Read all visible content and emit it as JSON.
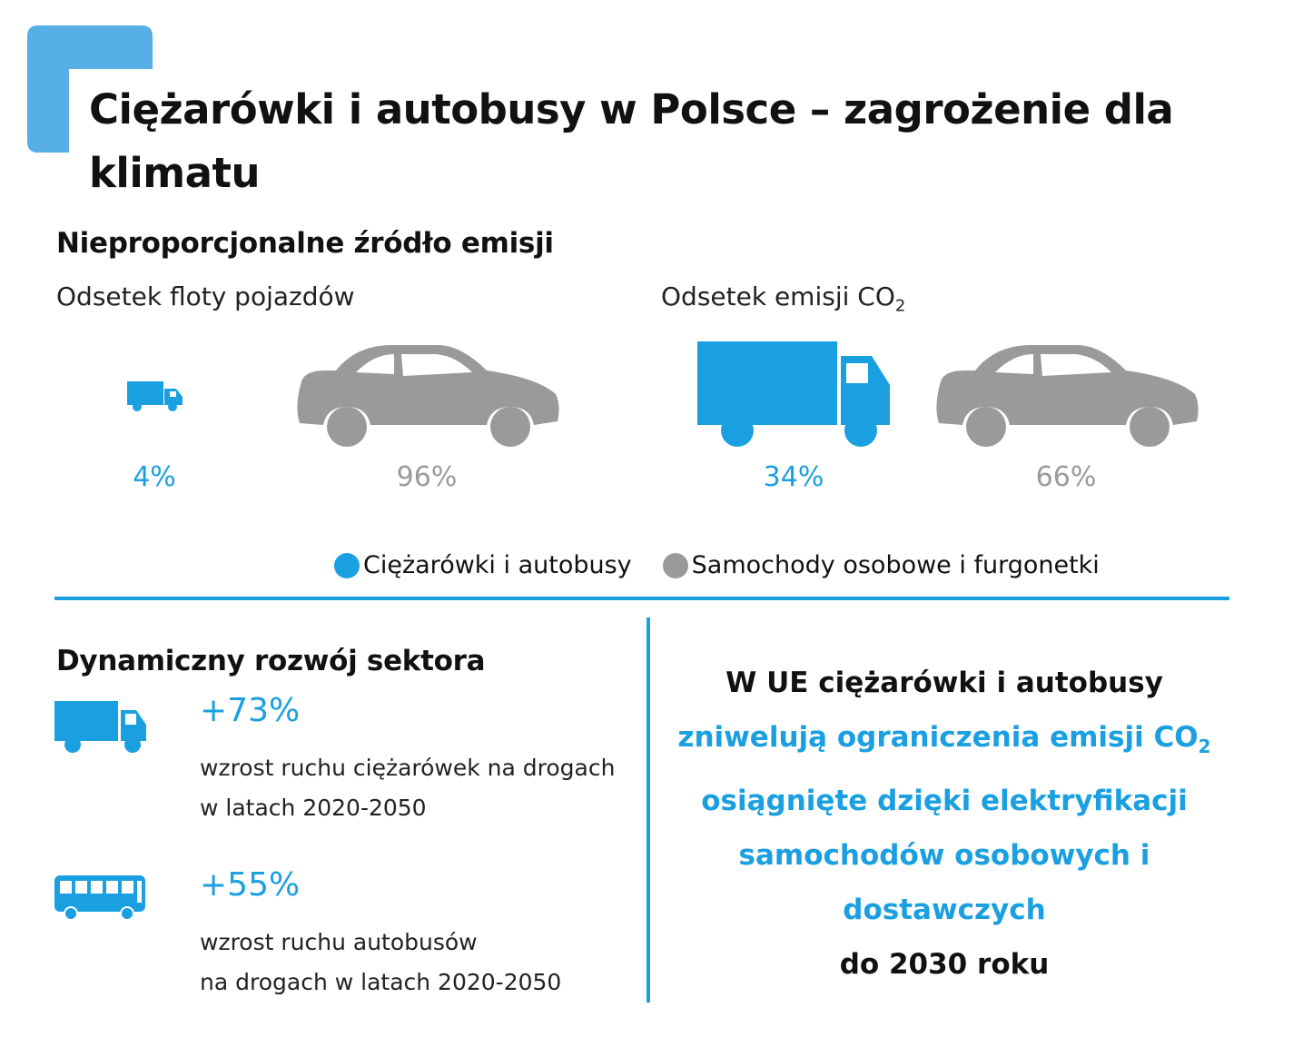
{
  "title": "Ciężarówki i autobusy w Polsce – zagrożenie dla klimatu",
  "section1": {
    "heading": "Nieproporcjonalne źródło emisji",
    "fleet_label": "Odsetek floty pojazdów",
    "emission_label_main": "Odsetek emisji CO",
    "emission_label_sub": "2",
    "fleet_trucks_pct": "4%",
    "fleet_cars_pct": "96%",
    "emission_trucks_pct": "34%",
    "emission_cars_pct": "66%",
    "legend": {
      "trucks": "Ciężarówki i autobusy",
      "cars": "Samochody osobowe i furgonetki"
    }
  },
  "section2": {
    "heading": "Dynamiczny rozwój sektora",
    "truck_growth": "+73%",
    "truck_desc_line1": "wzrost ruchu ciężarówek na drogach",
    "truck_desc_line2": "w latach 2020-2050",
    "bus_growth": "+55%",
    "bus_desc_line1": "wzrost ruchu autobusów",
    "bus_desc_line2": "na drogach w latach 2020-2050"
  },
  "section3": {
    "line1": "W UE ciężarówki i autobusy",
    "line2_main": "zniwelują ograniczenia emisji CO",
    "line2_sub": "2",
    "line3": "osiągnięte dzięki elektryfikacji",
    "line4": "samochodów osobowych i",
    "line5": "dostawczych",
    "line6": "do 2030 roku"
  },
  "colors": {
    "accent_blue": "#1aa0e0",
    "corner_blue": "#55aee6",
    "car_gray": "#9a9a9a"
  }
}
